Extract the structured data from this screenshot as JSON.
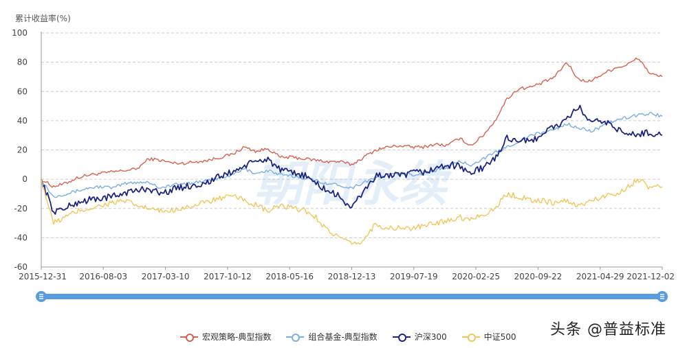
{
  "chart_data": {
    "type": "line",
    "ylabel": "累计收益率(%)",
    "ylim": [
      -60,
      100
    ],
    "yticks": [
      100,
      80,
      60,
      40,
      20,
      0,
      -20,
      -40,
      -60
    ],
    "x_tick_labels": [
      "2015-12-31",
      "2016-08-03",
      "2017-03-10",
      "2017-10-12",
      "2018-05-16",
      "2018-12-13",
      "2019-07-19",
      "2020-02-25",
      "2020-09-22",
      "2021-04-29",
      "2021-12-02"
    ],
    "grid": true,
    "legend_position": "bottom",
    "series": [
      {
        "name": "宏观策略-典型指数",
        "color": "#d9604d",
        "values": [
          0,
          -5,
          -3,
          1,
          3,
          4,
          5,
          6,
          7,
          14,
          13,
          11,
          11,
          12,
          13,
          15,
          17,
          22,
          19,
          21,
          15,
          15,
          14,
          13,
          12,
          12,
          10,
          15,
          20,
          22,
          23,
          22,
          22,
          24,
          23,
          28,
          23,
          30,
          40,
          55,
          62,
          63,
          66,
          70,
          80,
          68,
          67,
          72,
          76,
          78,
          83,
          72,
          70
        ]
      },
      {
        "name": "组合基金-典型指数",
        "color": "#7aaee3",
        "values": [
          0,
          -12,
          -10,
          -8,
          -6,
          -5,
          -6,
          -3,
          -2,
          -2,
          -6,
          -4,
          -3,
          -2,
          -1,
          1,
          3,
          7,
          4,
          6,
          3,
          2,
          1,
          -1,
          -3,
          -4,
          -6,
          -2,
          1,
          3,
          4,
          3,
          4,
          6,
          8,
          12,
          10,
          14,
          18,
          22,
          26,
          30,
          32,
          34,
          38,
          35,
          33,
          36,
          40,
          42,
          44,
          45,
          43
        ]
      },
      {
        "name": "沪深300",
        "color": "#1a237e",
        "values": [
          0,
          -22,
          -20,
          -16,
          -14,
          -13,
          -12,
          -9,
          -8,
          -6,
          -10,
          -7,
          -5,
          -4,
          -2,
          2,
          5,
          9,
          12,
          14,
          6,
          4,
          3,
          -3,
          -8,
          -12,
          -20,
          -8,
          2,
          3,
          2,
          4,
          5,
          7,
          10,
          9,
          4,
          8,
          14,
          28,
          27,
          25,
          32,
          36,
          40,
          50,
          38,
          40,
          36,
          30,
          31,
          32,
          30
        ]
      },
      {
        "name": "中证500",
        "color": "#f2c55c",
        "values": [
          0,
          -30,
          -26,
          -22,
          -20,
          -18,
          -16,
          -15,
          -18,
          -20,
          -22,
          -21,
          -19,
          -18,
          -15,
          -13,
          -12,
          -14,
          -18,
          -22,
          -18,
          -20,
          -21,
          -26,
          -35,
          -40,
          -45,
          -42,
          -30,
          -34,
          -33,
          -34,
          -32,
          -30,
          -28,
          -26,
          -27,
          -24,
          -20,
          -10,
          -12,
          -14,
          -15,
          -16,
          -15,
          -18,
          -15,
          -12,
          -10,
          -6,
          0,
          -6,
          -5
        ]
      }
    ]
  },
  "watermark_text": "朝阳永续",
  "signature_text": "头条 @普益标准"
}
